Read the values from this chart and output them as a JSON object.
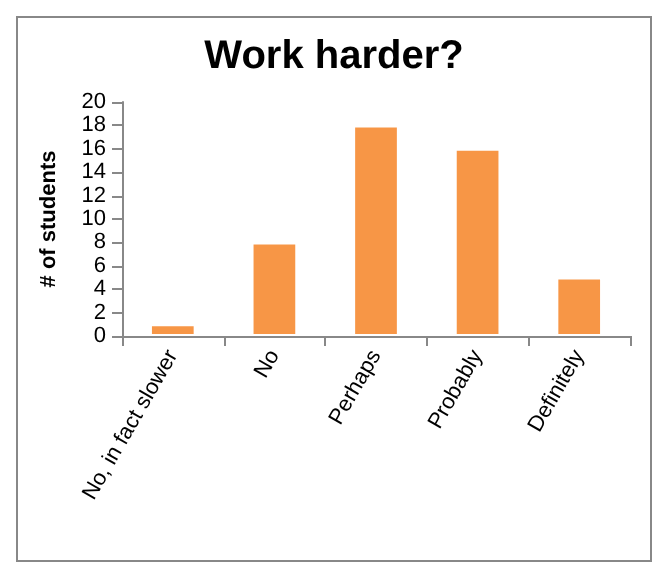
{
  "chart_data": {
    "type": "bar",
    "title": "Work harder?",
    "ylabel": "# of students",
    "categories": [
      "No, in fact slower",
      "No",
      "Perhaps",
      "Probably",
      "Definitely"
    ],
    "values": [
      1,
      8,
      18,
      16,
      5
    ],
    "color": "#f79646",
    "ylim": [
      0,
      20
    ],
    "yticks": [
      0,
      2,
      4,
      6,
      8,
      10,
      12,
      14,
      16,
      18,
      20
    ],
    "grid": false
  }
}
